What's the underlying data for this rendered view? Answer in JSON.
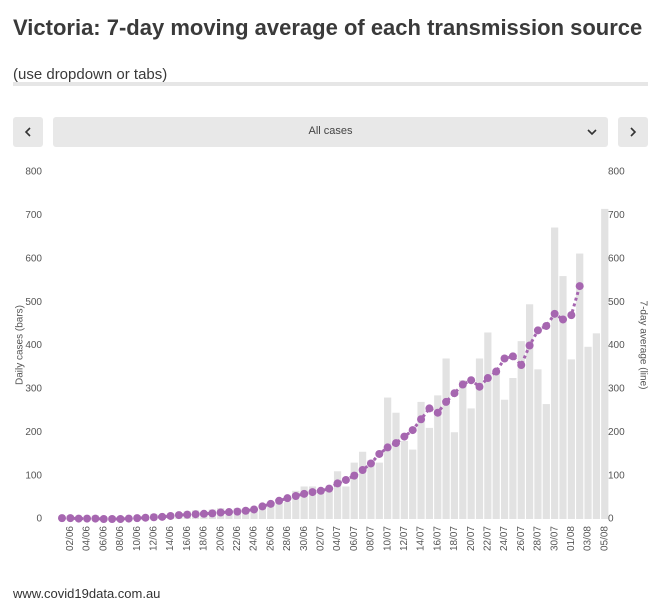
{
  "header": {
    "title": "Victoria: 7-day moving average of each transmission source",
    "subtitle": "(use dropdown or tabs)"
  },
  "dropdown": {
    "selected": "All cases"
  },
  "footer": "www.covid19data.com.au",
  "chart_data": {
    "type": "bar_line",
    "y_label": "Daily cases (bars)",
    "y2_label": "7-day average (line)",
    "categories": [
      null,
      "02/06",
      null,
      "04/06",
      null,
      "06/06",
      null,
      "08/06",
      null,
      "10/06",
      null,
      "12/06",
      null,
      "14/06",
      null,
      "16/06",
      null,
      "18/06",
      null,
      "20/06",
      null,
      "22/06",
      null,
      "24/06",
      null,
      "26/06",
      null,
      "28/06",
      null,
      "30/06",
      null,
      "02/07",
      null,
      "04/07",
      null,
      "06/07",
      null,
      "08/07",
      null,
      "10/07",
      null,
      "12/07",
      null,
      "14/07",
      null,
      "16/07",
      null,
      "18/07",
      null,
      "20/07",
      null,
      "22/07",
      null,
      "24/07",
      null,
      "26/07",
      null,
      "28/07",
      null,
      "30/07",
      null,
      "01/08",
      null,
      "03/08",
      null,
      "05/08"
    ],
    "series": [
      {
        "name": "Daily cases",
        "type": "bar",
        "color": "#e2e2e2",
        "values": [
          5,
          8,
          4,
          6,
          8,
          3,
          6,
          4,
          2,
          4,
          8,
          12,
          10,
          7,
          14,
          18,
          20,
          18,
          22,
          25,
          18,
          25,
          20,
          17,
          33,
          32,
          43,
          40,
          65,
          75,
          75,
          60,
          65,
          110,
          75,
          130,
          155,
          135,
          130,
          280,
          245,
          180,
          160,
          270,
          210,
          285,
          370,
          200,
          320,
          255,
          370,
          430,
          345,
          275,
          325,
          410,
          495,
          345,
          265,
          672,
          560,
          368,
          612,
          397,
          428,
          715
        ]
      },
      {
        "name": "7-day average",
        "type": "line",
        "axis": "y2",
        "color": "#a666b0",
        "values": [
          2,
          2,
          1,
          1,
          1,
          0,
          0,
          0,
          1,
          2,
          3,
          4,
          5,
          7,
          9,
          10,
          11,
          12,
          13,
          15,
          16,
          17,
          19,
          22,
          29,
          35,
          42,
          48,
          53,
          58,
          62,
          65,
          70,
          82,
          90,
          100,
          113,
          128,
          150,
          165,
          175,
          190,
          205,
          230,
          255,
          245,
          270,
          290,
          310,
          320,
          305,
          325,
          340,
          370,
          375,
          355,
          400,
          435,
          445,
          473,
          460,
          470,
          537,
          null,
          null,
          null
        ]
      }
    ],
    "ylim": [
      0,
      800
    ],
    "yticks": [
      0,
      100,
      200,
      300,
      400,
      500,
      600,
      700,
      800
    ],
    "y2lim": [
      0,
      800
    ],
    "y2ticks": [
      0,
      100,
      200,
      300,
      400,
      500,
      600,
      700,
      800
    ]
  }
}
